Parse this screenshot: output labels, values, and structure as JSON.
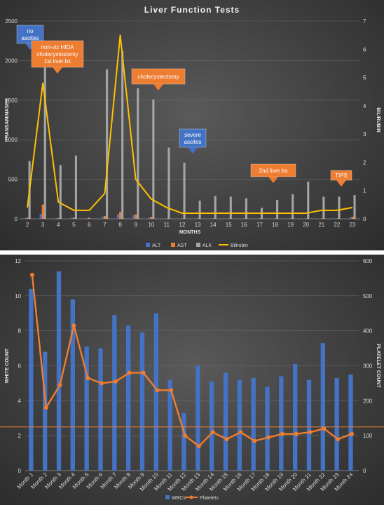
{
  "colors": {
    "alt": "#4472C4",
    "ast": "#ED7D31",
    "alk": "#A5A5A5",
    "bilirubin": "#FFC000",
    "wbc": "#4472C4",
    "platelets": "#ED7D31",
    "annot_blue": "#4472C4",
    "annot_orange": "#ED7D31"
  },
  "chart_data": [
    {
      "type": "bar",
      "title": "Liver Function Tests",
      "xlabel": "MONTHS",
      "ylabel": "TRANSAMINASES",
      "y2label": "BILIRUBIN",
      "categories": [
        "2",
        "3",
        "4",
        "5",
        "6",
        "7",
        "8",
        "9",
        "10",
        "11",
        "12",
        "13",
        "14",
        "15",
        "16",
        "17",
        "18",
        "19",
        "20",
        "21",
        "22",
        "23"
      ],
      "ylim": [
        0,
        2500
      ],
      "yticks": [
        "0",
        "500",
        "1000",
        "1500",
        "2000",
        "2500"
      ],
      "y2lim": [
        0,
        7
      ],
      "y2ticks": [
        "0",
        "1",
        "2",
        "3",
        "4",
        "5",
        "6",
        "7"
      ],
      "legend_position": "bottom",
      "grid": true,
      "series": [
        {
          "name": "ALT",
          "type": "bar",
          "axis": "left",
          "values": [
            10,
            60,
            10,
            15,
            10,
            25,
            60,
            45,
            15,
            5,
            5,
            5,
            5,
            5,
            5,
            5,
            5,
            5,
            5,
            5,
            5,
            15
          ]
        },
        {
          "name": "AST",
          "type": "bar",
          "axis": "left",
          "values": [
            15,
            180,
            10,
            15,
            15,
            35,
            90,
            55,
            25,
            5,
            5,
            5,
            5,
            5,
            5,
            5,
            5,
            5,
            5,
            5,
            5,
            25
          ]
        },
        {
          "name": "ALK",
          "type": "bar",
          "axis": "left",
          "values": [
            730,
            2250,
            680,
            800,
            0,
            1890,
            2120,
            1650,
            1510,
            900,
            710,
            230,
            290,
            280,
            260,
            140,
            240,
            310,
            470,
            280,
            280,
            300
          ]
        },
        {
          "name": "Bilirubin",
          "type": "line",
          "axis": "right",
          "values": [
            0.4,
            4.8,
            0.6,
            0.3,
            0.3,
            0.9,
            6.5,
            1.4,
            0.7,
            0.4,
            0.2,
            0.2,
            0.2,
            0.2,
            0.2,
            0.2,
            0.2,
            0.2,
            0.2,
            0.3,
            0.3,
            0.4
          ]
        }
      ],
      "annotations": [
        {
          "text": [
            "no",
            "ascites"
          ],
          "color": "blue",
          "at_category": "2",
          "arrow": "down"
        },
        {
          "text": [
            "non-viz HIDA",
            "cholecystostomy",
            "1st liver bx"
          ],
          "color": "orange",
          "at_category": "3",
          "arrow": "down"
        },
        {
          "text": [
            "cholecystectomy"
          ],
          "color": "orange",
          "at_category": "10",
          "arrow": "down"
        },
        {
          "text": [
            "severe",
            "ascites"
          ],
          "color": "blue",
          "at_category": "12",
          "arrow": "down"
        },
        {
          "text": [
            "2nd liver bx"
          ],
          "color": "orange",
          "at_category": "18",
          "arrow": "down"
        },
        {
          "text": [
            "TIPS"
          ],
          "color": "orange",
          "at_category": "22",
          "arrow": "down"
        }
      ]
    },
    {
      "type": "bar",
      "title": "",
      "xlabel": "",
      "ylabel": "WHITE COUNT",
      "y2label": "PLATELET COUNT",
      "categories": [
        "Month 1",
        "Month 2",
        "Month 3",
        "Month 4",
        "Month 5",
        "Month 6",
        "Month 7",
        "Month 8",
        "Month 9",
        "Month 10",
        "Month 11",
        "Month 12",
        "Month 13",
        "Month 14",
        "Month 15",
        "Month 16",
        "Month 17",
        "Month 18",
        "Month 19",
        "Month 20",
        "Month 21",
        "Month 22",
        "Month 23",
        "Month 24"
      ],
      "ylim": [
        0,
        12
      ],
      "yticks": [
        "0",
        "2",
        "4",
        "6",
        "8",
        "10",
        "12"
      ],
      "y2lim": [
        0,
        600
      ],
      "y2ticks": [
        "0",
        "100",
        "200",
        "300",
        "400",
        "500",
        "600"
      ],
      "reference_line": 2.5,
      "legend_position": "bottom",
      "grid": true,
      "series": [
        {
          "name": "WBCs",
          "type": "bar",
          "axis": "left",
          "values": [
            10.4,
            6.8,
            11.4,
            9.8,
            7.1,
            7.0,
            8.9,
            8.3,
            7.9,
            9.0,
            5.2,
            3.3,
            6.0,
            5.1,
            5.6,
            5.2,
            5.3,
            4.8,
            5.4,
            6.1,
            5.2,
            7.3,
            5.3,
            5.5
          ]
        },
        {
          "name": "Platelets",
          "type": "line",
          "axis": "right",
          "values": [
            560,
            180,
            245,
            415,
            265,
            250,
            255,
            280,
            280,
            230,
            230,
            100,
            70,
            110,
            90,
            110,
            85,
            95,
            105,
            105,
            110,
            120,
            90,
            105
          ]
        }
      ]
    }
  ]
}
